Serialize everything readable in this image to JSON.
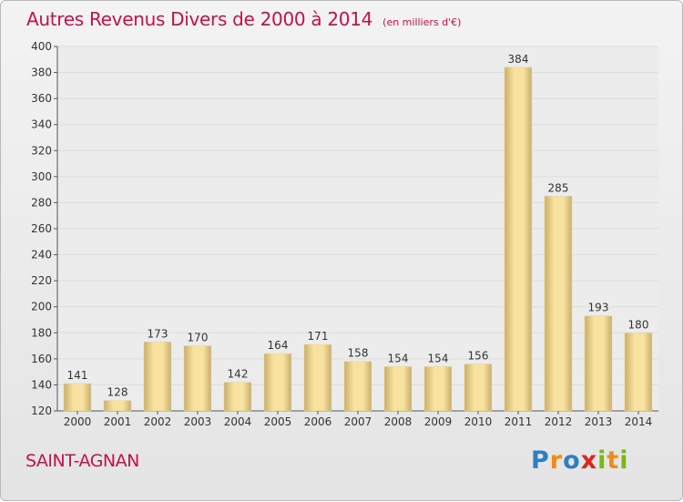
{
  "header": {
    "title": "Autres Revenus Divers de 2000 à 2014",
    "subtitle": "(en milliers d'€)"
  },
  "footer": {
    "commune": "SAINT-AGNAN",
    "logo_text": "Proxiti",
    "logo_letters": [
      {
        "ch": "P",
        "color": "#2f7ec1"
      },
      {
        "ch": "r",
        "color": "#f08a1c"
      },
      {
        "ch": "o",
        "color": "#2f7ec1"
      },
      {
        "ch": "x",
        "color": "#e2231a"
      },
      {
        "ch": "i",
        "color": "#7ab51d"
      },
      {
        "ch": "t",
        "color": "#f08a1c"
      },
      {
        "ch": "i",
        "color": "#7ab51d"
      }
    ]
  },
  "colors": {
    "accent": "#c8104a",
    "bar_light": "#f8e29f",
    "bar_dark": "#c9ad6b",
    "grid": "#dddddd",
    "axis": "#555555"
  },
  "chart_data": {
    "type": "bar",
    "title": "Autres Revenus Divers de 2000 à 2014",
    "subtitle": "(en milliers d'€)",
    "xlabel": "",
    "ylabel": "",
    "categories": [
      "2000",
      "2001",
      "2002",
      "2003",
      "2004",
      "2005",
      "2006",
      "2007",
      "2008",
      "2009",
      "2010",
      "2011",
      "2012",
      "2013",
      "2014"
    ],
    "values": [
      141,
      128,
      173,
      170,
      142,
      164,
      171,
      158,
      154,
      154,
      156,
      384,
      285,
      193,
      180
    ],
    "ylim": [
      120,
      400
    ],
    "yticks": [
      120,
      140,
      160,
      180,
      200,
      220,
      240,
      260,
      280,
      300,
      320,
      340,
      360,
      380,
      400
    ],
    "grid": true,
    "data_labels": true
  }
}
